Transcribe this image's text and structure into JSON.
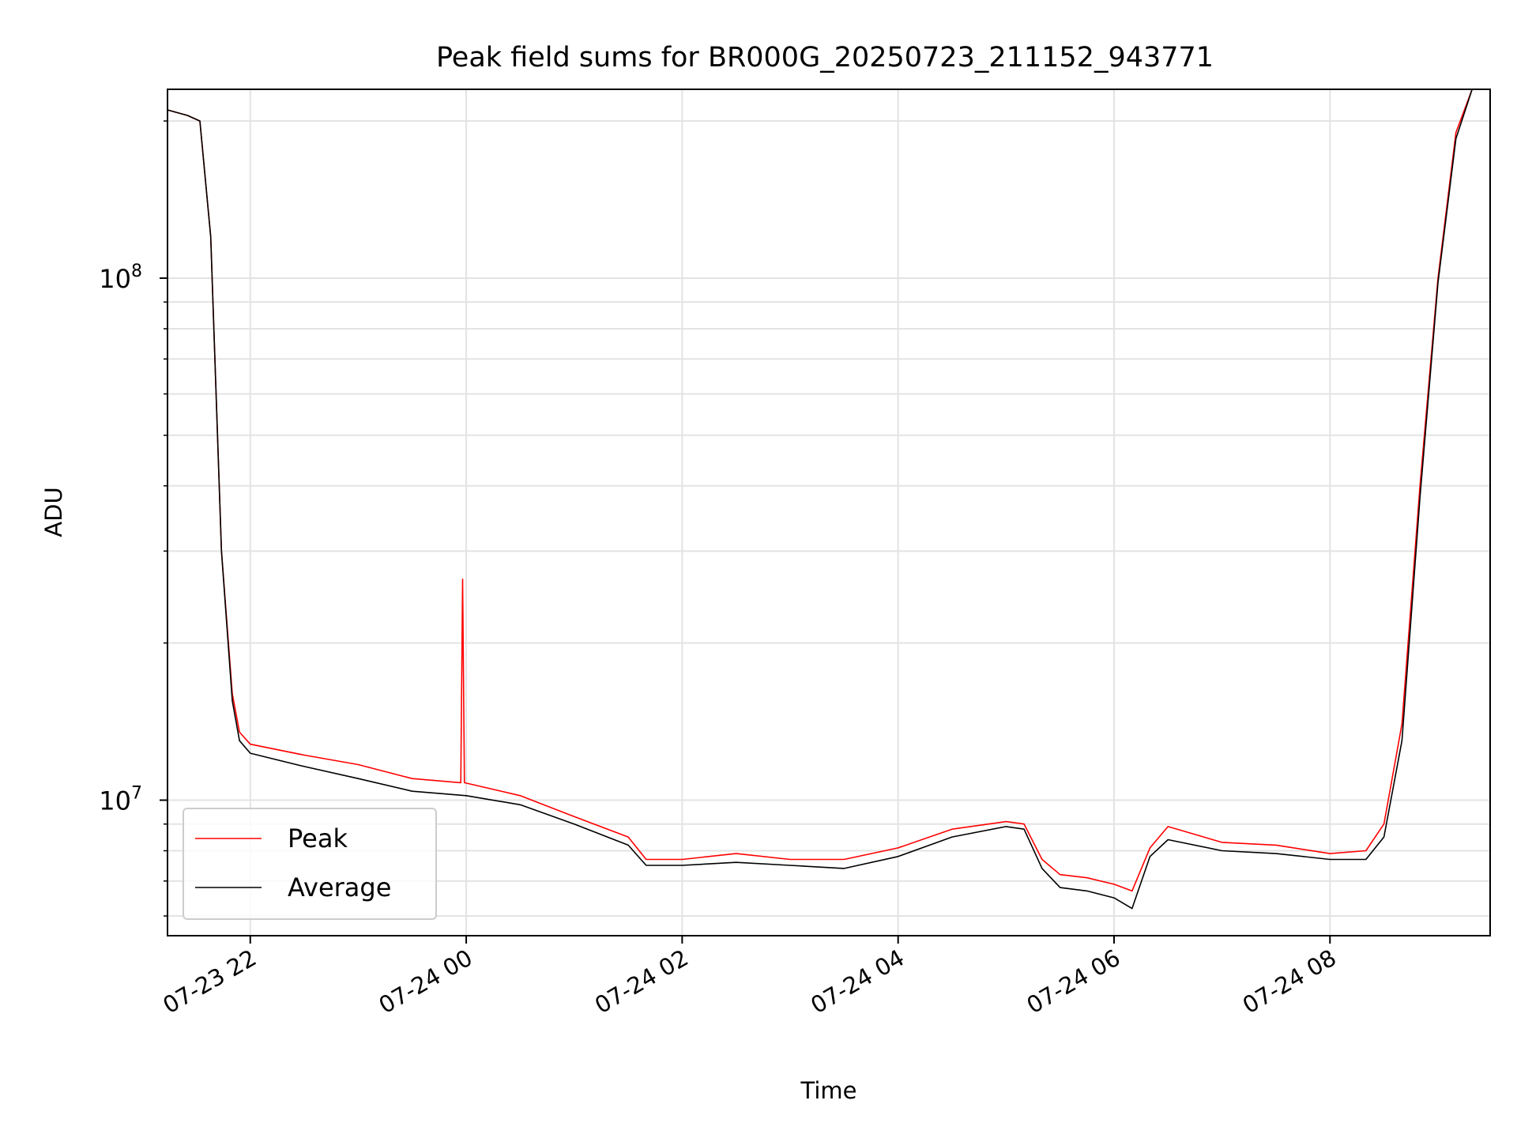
{
  "chart_data": {
    "type": "line",
    "title": "Peak field sums for BR000G_20250723_211152_943771",
    "xlabel": "Time",
    "ylabel": "ADU",
    "yscale": "log",
    "xlim": [
      "2025-07-23T21:14",
      "2025-07-24T09:29"
    ],
    "ylim": [
      5500000,
      230000000
    ],
    "x_ticks": [
      {
        "time": "2025-07-23T22:00",
        "label": "07-23 22"
      },
      {
        "time": "2025-07-24T00:00",
        "label": "07-24 00"
      },
      {
        "time": "2025-07-24T02:00",
        "label": "07-24 02"
      },
      {
        "time": "2025-07-24T04:00",
        "label": "07-24 04"
      },
      {
        "time": "2025-07-24T06:00",
        "label": "07-24 06"
      },
      {
        "time": "2025-07-24T08:00",
        "label": "07-24 08"
      }
    ],
    "y_ticks": [
      {
        "value": 10000000,
        "label_base": "10",
        "label_exp": "7"
      },
      {
        "value": 100000000,
        "label_base": "10",
        "label_exp": "8"
      }
    ],
    "grid": true,
    "legend_position": "lower-left",
    "series": [
      {
        "name": "Peak",
        "color": "#ff0000",
        "x": [
          "2025-07-23T21:14",
          "2025-07-23T21:25",
          "2025-07-23T21:32",
          "2025-07-23T21:38",
          "2025-07-23T21:44",
          "2025-07-23T21:50",
          "2025-07-23T21:54",
          "2025-07-23T22:00",
          "2025-07-23T22:30",
          "2025-07-23T23:00",
          "2025-07-23T23:30",
          "2025-07-23T23:57",
          "2025-07-23T23:58",
          "2025-07-23T23:59",
          "2025-07-24T00:30",
          "2025-07-24T01:00",
          "2025-07-24T01:30",
          "2025-07-24T01:40",
          "2025-07-24T02:00",
          "2025-07-24T02:30",
          "2025-07-24T03:00",
          "2025-07-24T03:30",
          "2025-07-24T04:00",
          "2025-07-24T04:30",
          "2025-07-24T05:00",
          "2025-07-24T05:10",
          "2025-07-24T05:20",
          "2025-07-24T05:30",
          "2025-07-24T05:45",
          "2025-07-24T06:00",
          "2025-07-24T06:10",
          "2025-07-24T06:20",
          "2025-07-24T06:30",
          "2025-07-24T07:00",
          "2025-07-24T07:30",
          "2025-07-24T08:00",
          "2025-07-24T08:20",
          "2025-07-24T08:30",
          "2025-07-24T08:40",
          "2025-07-24T08:50",
          "2025-07-24T09:00",
          "2025-07-24T09:10",
          "2025-07-24T09:19",
          "2025-07-24T09:29"
        ],
        "y": [
          210000000,
          205000000,
          200000000,
          120000000,
          30000000,
          16000000,
          13500000,
          12800000,
          12200000,
          11700000,
          11000000,
          10800000,
          26500000,
          10800000,
          10200000,
          9300000,
          8500000,
          7700000,
          7700000,
          7900000,
          7700000,
          7700000,
          8100000,
          8800000,
          9100000,
          9000000,
          7700000,
          7200000,
          7100000,
          6900000,
          6700000,
          8100000,
          8900000,
          8300000,
          8200000,
          7900000,
          8000000,
          9000000,
          14000000,
          40000000,
          100000000,
          190000000,
          230000000,
          230000000
        ]
      },
      {
        "name": "Average",
        "color": "#000000",
        "x": [
          "2025-07-23T21:14",
          "2025-07-23T21:25",
          "2025-07-23T21:32",
          "2025-07-23T21:38",
          "2025-07-23T21:44",
          "2025-07-23T21:50",
          "2025-07-23T21:54",
          "2025-07-23T22:00",
          "2025-07-23T22:30",
          "2025-07-23T23:00",
          "2025-07-23T23:30",
          "2025-07-24T00:00",
          "2025-07-24T00:30",
          "2025-07-24T01:00",
          "2025-07-24T01:30",
          "2025-07-24T01:40",
          "2025-07-24T02:00",
          "2025-07-24T02:30",
          "2025-07-24T03:00",
          "2025-07-24T03:30",
          "2025-07-24T04:00",
          "2025-07-24T04:30",
          "2025-07-24T05:00",
          "2025-07-24T05:10",
          "2025-07-24T05:20",
          "2025-07-24T05:30",
          "2025-07-24T05:45",
          "2025-07-24T06:00",
          "2025-07-24T06:10",
          "2025-07-24T06:20",
          "2025-07-24T06:30",
          "2025-07-24T07:00",
          "2025-07-24T07:30",
          "2025-07-24T08:00",
          "2025-07-24T08:20",
          "2025-07-24T08:30",
          "2025-07-24T08:40",
          "2025-07-24T08:50",
          "2025-07-24T09:00",
          "2025-07-24T09:10",
          "2025-07-24T09:19",
          "2025-07-24T09:29"
        ],
        "y": [
          210000000,
          205000000,
          200000000,
          120000000,
          30000000,
          15500000,
          13000000,
          12300000,
          11600000,
          11000000,
          10400000,
          10200000,
          9800000,
          9000000,
          8200000,
          7500000,
          7500000,
          7600000,
          7500000,
          7400000,
          7800000,
          8500000,
          8900000,
          8800000,
          7400000,
          6800000,
          6700000,
          6500000,
          6200000,
          7800000,
          8400000,
          8000000,
          7900000,
          7700000,
          7700000,
          8500000,
          13000000,
          38000000,
          98000000,
          185000000,
          230000000,
          230000000
        ]
      }
    ]
  }
}
